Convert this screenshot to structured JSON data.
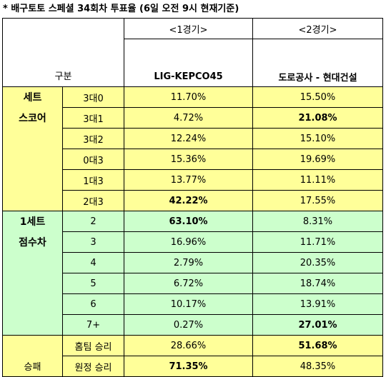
{
  "title": "* 배구토토 스페셜 34회차 투표율 (6일 오전 9시 현재기준)",
  "header": {
    "category": "구분",
    "game1_label": "<1경기>",
    "game2_label": "<2경기>",
    "game1_teams": "LIG-KEPCO45",
    "game2_teams": "도로공사 - 현대건설"
  },
  "set_score": {
    "label_line1": "세트",
    "label_line2": "스코어",
    "rows": [
      {
        "option": "3대0",
        "g1": "11.70%",
        "g2": "15.50%",
        "g1_bold": false,
        "g2_bold": false
      },
      {
        "option": "3대1",
        "g1": "4.72%",
        "g2": "21.08%",
        "g1_bold": false,
        "g2_bold": true
      },
      {
        "option": "3대2",
        "g1": "12.24%",
        "g2": "15.10%",
        "g1_bold": false,
        "g2_bold": false
      },
      {
        "option": "0대3",
        "g1": "15.36%",
        "g2": "19.69%",
        "g1_bold": false,
        "g2_bold": false
      },
      {
        "option": "1대3",
        "g1": "13.77%",
        "g2": "11.11%",
        "g1_bold": false,
        "g2_bold": false
      },
      {
        "option": "2대3",
        "g1": "42.22%",
        "g2": "17.55%",
        "g1_bold": true,
        "g2_bold": false
      }
    ]
  },
  "set1_diff": {
    "label_line1": "1세트",
    "label_line2": "점수차",
    "rows": [
      {
        "option": "2",
        "g1": "63.10%",
        "g2": "8.31%",
        "g1_bold": true,
        "g2_bold": false
      },
      {
        "option": "3",
        "g1": "16.96%",
        "g2": "11.71%",
        "g1_bold": false,
        "g2_bold": false
      },
      {
        "option": "4",
        "g1": "2.79%",
        "g2": "20.35%",
        "g1_bold": false,
        "g2_bold": false
      },
      {
        "option": "5",
        "g1": "6.72%",
        "g2": "18.74%",
        "g1_bold": false,
        "g2_bold": false
      },
      {
        "option": "6",
        "g1": "10.17%",
        "g2": "13.91%",
        "g1_bold": false,
        "g2_bold": false
      },
      {
        "option": "7+",
        "g1": "0.27%",
        "g2": "27.01%",
        "g1_bold": false,
        "g2_bold": true
      }
    ]
  },
  "win_lose": {
    "label": "승패",
    "rows": [
      {
        "option": "홈팀 승리",
        "g1": "28.66%",
        "g2": "51.68%",
        "g1_bold": false,
        "g2_bold": true
      },
      {
        "option": "원정 승리",
        "g1": "71.35%",
        "g2": "48.35%",
        "g1_bold": true,
        "g2_bold": false
      }
    ]
  }
}
